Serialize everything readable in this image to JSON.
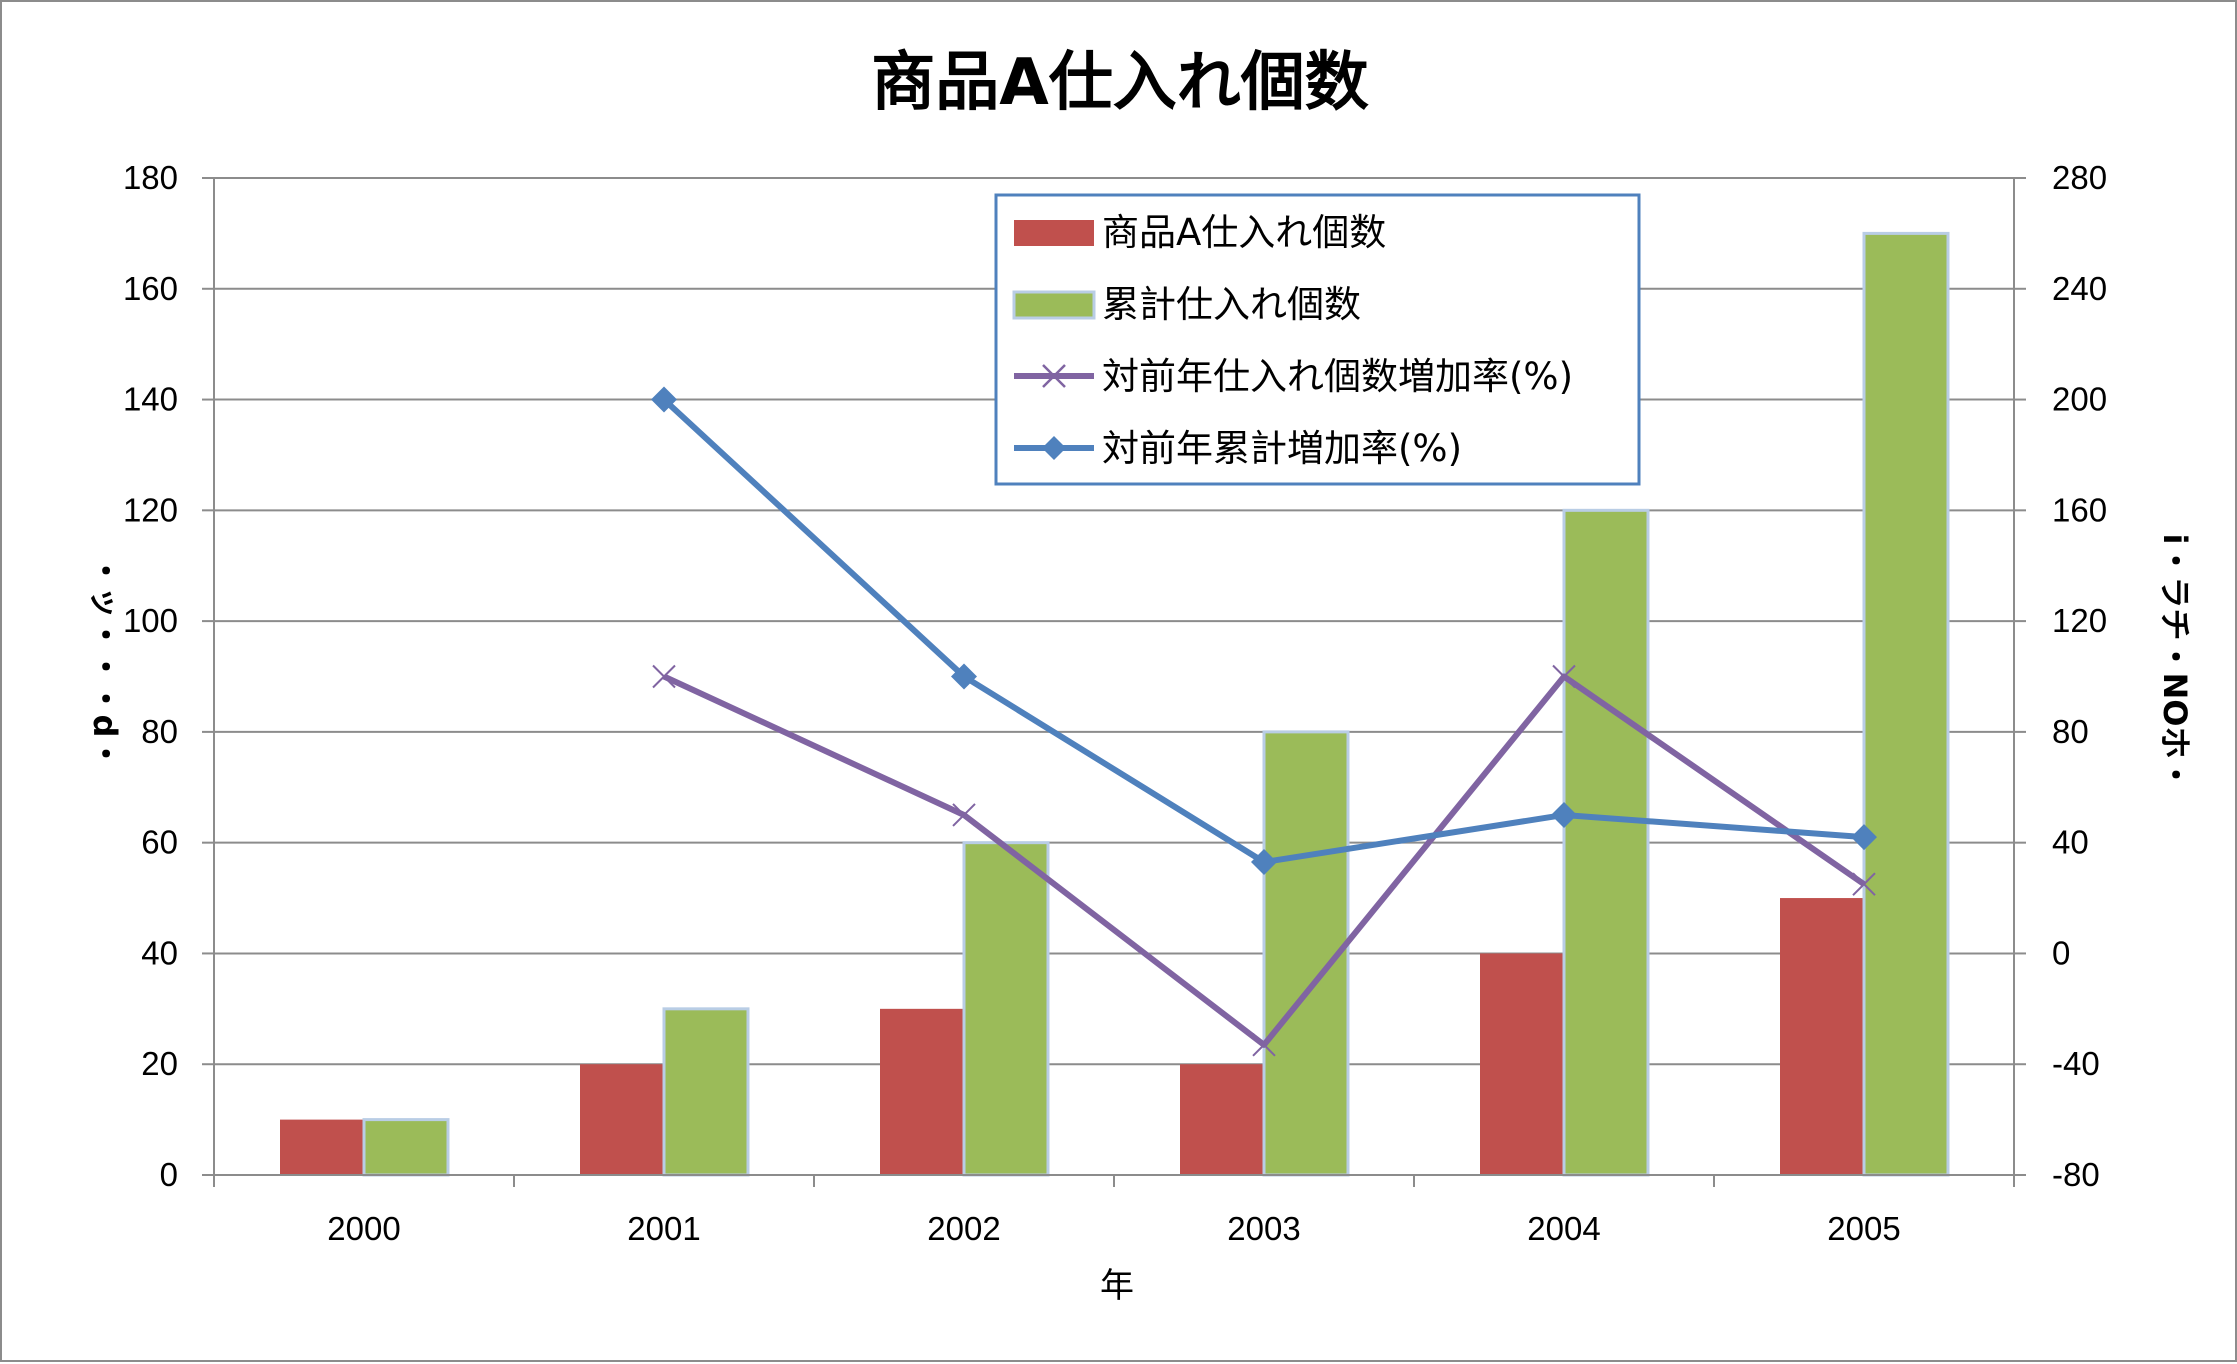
{
  "chart_data": {
    "type": "bar",
    "title": "商品A仕入れ個数",
    "xlabel": "年",
    "ylabel_left": "・ッ・・・d・",
    "ylabel_right": "i・ラチ・NOホ・",
    "categories": [
      "2000",
      "2001",
      "2002",
      "2003",
      "2004",
      "2005"
    ],
    "y_left": {
      "min": 0,
      "max": 180,
      "step": 20
    },
    "y_right": {
      "min": -80,
      "max": 280,
      "step": 40
    },
    "grid": true,
    "legend_position": "top-right",
    "series": [
      {
        "name": "商品A仕入れ個数",
        "kind": "bar",
        "axis": "left",
        "color": "#c0504d",
        "values": [
          10,
          20,
          30,
          20,
          40,
          50
        ]
      },
      {
        "name": "累計仕入れ個数",
        "kind": "bar",
        "axis": "left",
        "color": "#9bbb59",
        "values": [
          10,
          30,
          60,
          80,
          120,
          170
        ]
      },
      {
        "name": "対前年仕入れ個数増加率(%)",
        "kind": "line",
        "axis": "right",
        "color": "#8064a2",
        "marker": "x",
        "values": [
          null,
          100,
          50,
          -33,
          100,
          25
        ]
      },
      {
        "name": "対前年累計増加率(%)",
        "kind": "line",
        "axis": "right",
        "color": "#4f81bd",
        "marker": "diamond",
        "values": [
          null,
          200,
          100,
          33,
          50,
          42
        ]
      }
    ]
  }
}
